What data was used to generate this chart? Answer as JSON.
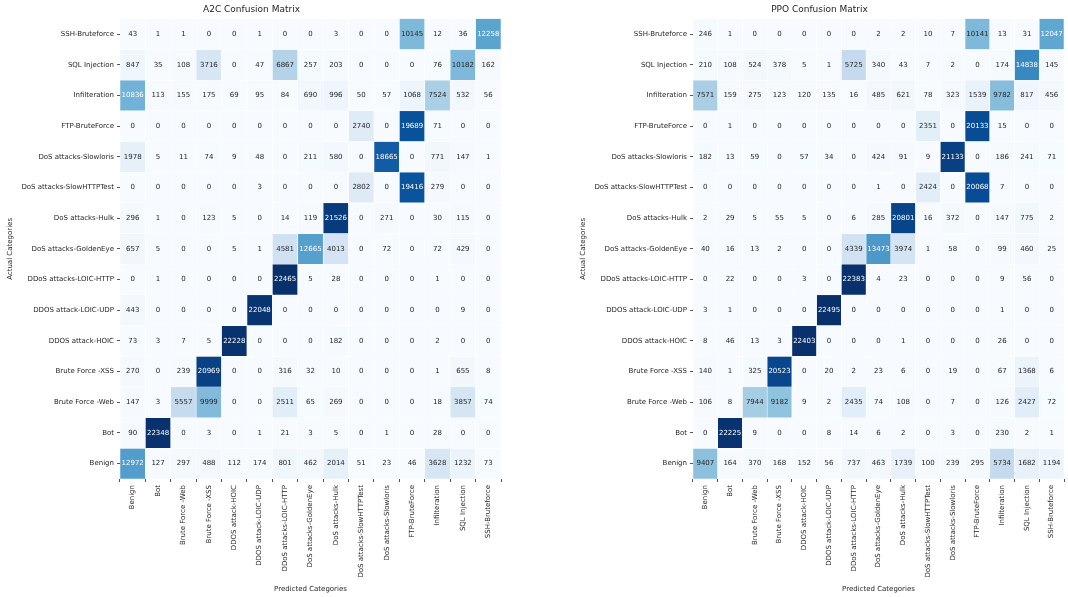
{
  "chart_data": [
    {
      "type": "heatmap",
      "title": "A2C Confusion Matrix",
      "xlabel": "Predicted Categories",
      "ylabel": "Actual Categories",
      "data_labels": true,
      "categories": [
        "Benign",
        "Bot",
        "Brute Force -Web",
        "Brute Force -XSS",
        "DDOS attack-HOIC",
        "DDOS attack-LOIC-UDP",
        "DDoS attacks-LOIC-HTTP",
        "DoS attacks-GoldenEye",
        "DoS attacks-Hulk",
        "DoS attacks-SlowHTTPTest",
        "DoS attacks-Slowloris",
        "FTP-BruteForce",
        "Infilteration",
        "SQL Injection",
        "SSH-Bruteforce"
      ],
      "y_categories": [
        "SSH-Bruteforce",
        "SQL Injection",
        "Infilteration",
        "FTP-BruteForce",
        "DoS attacks-Slowloris",
        "DoS attacks-SlowHTTPTest",
        "DoS attacks-Hulk",
        "DoS attacks-GoldenEye",
        "DDoS attacks-LOIC-HTTP",
        "DDOS attack-LOIC-UDP",
        "DDOS attack-HOIC",
        "Brute Force -XSS",
        "Brute Force -Web",
        "Bot",
        "Benign"
      ],
      "cells": [
        [
          43,
          1,
          1,
          0,
          0,
          1,
          0,
          0,
          3,
          0,
          0,
          10145,
          12,
          36,
          12258
        ],
        [
          847,
          35,
          108,
          3716,
          0,
          47,
          6867,
          257,
          203,
          0,
          0,
          0,
          76,
          10182,
          162
        ],
        [
          10836,
          113,
          155,
          175,
          69,
          95,
          84,
          690,
          996,
          50,
          57,
          1068,
          7524,
          532,
          56
        ],
        [
          0,
          0,
          0,
          0,
          0,
          0,
          0,
          0,
          0,
          2740,
          0,
          19689,
          71,
          0,
          0
        ],
        [
          1978,
          5,
          11,
          74,
          9,
          48,
          0,
          211,
          580,
          0,
          18665,
          0,
          771,
          147,
          1
        ],
        [
          0,
          0,
          0,
          0,
          0,
          3,
          0,
          0,
          0,
          2802,
          0,
          19416,
          279,
          0,
          0
        ],
        [
          296,
          1,
          0,
          123,
          5,
          0,
          14,
          119,
          21526,
          0,
          271,
          0,
          30,
          115,
          0
        ],
        [
          657,
          5,
          0,
          0,
          5,
          1,
          4581,
          12665,
          4013,
          0,
          72,
          0,
          72,
          429,
          0
        ],
        [
          0,
          1,
          0,
          0,
          0,
          0,
          22465,
          5,
          28,
          0,
          0,
          0,
          1,
          0,
          0
        ],
        [
          443,
          0,
          0,
          0,
          0,
          22048,
          0,
          0,
          0,
          0,
          0,
          0,
          0,
          9,
          0
        ],
        [
          73,
          3,
          7,
          5,
          22228,
          0,
          0,
          0,
          182,
          0,
          0,
          0,
          2,
          0,
          0
        ],
        [
          270,
          0,
          239,
          20969,
          0,
          0,
          316,
          32,
          10,
          0,
          0,
          0,
          1,
          655,
          8
        ],
        [
          147,
          3,
          5557,
          9999,
          0,
          0,
          2511,
          65,
          269,
          0,
          0,
          0,
          18,
          3857,
          74
        ],
        [
          90,
          22348,
          0,
          3,
          0,
          1,
          21,
          3,
          5,
          0,
          1,
          0,
          28,
          0,
          0
        ],
        [
          12972,
          127,
          297,
          488,
          112,
          174,
          801,
          462,
          2014,
          51,
          23,
          46,
          3628,
          1232,
          73
        ]
      ]
    },
    {
      "type": "heatmap",
      "title": "PPO Confusion Matrix",
      "xlabel": "Predicted Categories",
      "ylabel": "Actual Categories",
      "data_labels": true,
      "categories": [
        "Benign",
        "Bot",
        "Brute Force -Web",
        "Brute Force -XSS",
        "DDOS attack-HOIC",
        "DDOS attack-LOIC-UDP",
        "DDoS attacks-LOIC-HTTP",
        "DoS attacks-GoldenEye",
        "DoS attacks-Hulk",
        "DoS attacks-SlowHTTPTest",
        "DoS attacks-Slowloris",
        "FTP-BruteForce",
        "Infilteration",
        "SQL Injection",
        "SSH-Bruteforce"
      ],
      "y_categories": [
        "SSH-Bruteforce",
        "SQL Injection",
        "Infilteration",
        "FTP-BruteForce",
        "DoS attacks-Slowloris",
        "DoS attacks-SlowHTTPTest",
        "DoS attacks-Hulk",
        "DoS attacks-GoldenEye",
        "DDoS attacks-LOIC-HTTP",
        "DDOS attack-LOIC-UDP",
        "DDOS attack-HOIC",
        "Brute Force -XSS",
        "Brute Force -Web",
        "Bot",
        "Benign"
      ],
      "cells": [
        [
          246,
          1,
          0,
          0,
          0,
          0,
          0,
          2,
          2,
          10,
          7,
          10141,
          13,
          31,
          12047
        ],
        [
          210,
          108,
          524,
          378,
          5,
          1,
          5725,
          340,
          43,
          7,
          2,
          0,
          174,
          14838,
          145
        ],
        [
          7571,
          159,
          275,
          123,
          120,
          135,
          16,
          485,
          621,
          78,
          323,
          1539,
          9782,
          817,
          456
        ],
        [
          0,
          1,
          0,
          0,
          0,
          0,
          0,
          0,
          0,
          2351,
          0,
          20133,
          15,
          0,
          0
        ],
        [
          182,
          13,
          59,
          0,
          57,
          34,
          0,
          424,
          91,
          9,
          21133,
          0,
          186,
          241,
          71
        ],
        [
          0,
          0,
          0,
          0,
          0,
          0,
          0,
          1,
          0,
          2424,
          0,
          20068,
          7,
          0,
          0
        ],
        [
          2,
          29,
          5,
          55,
          5,
          0,
          6,
          285,
          20801,
          16,
          372,
          0,
          147,
          775,
          2
        ],
        [
          40,
          16,
          13,
          2,
          0,
          0,
          4339,
          13473,
          3974,
          1,
          58,
          0,
          99,
          460,
          25
        ],
        [
          0,
          22,
          0,
          0,
          3,
          0,
          22383,
          4,
          23,
          0,
          0,
          0,
          9,
          56,
          0
        ],
        [
          3,
          1,
          0,
          0,
          0,
          22495,
          0,
          0,
          0,
          0,
          0,
          0,
          1,
          0,
          0
        ],
        [
          8,
          46,
          13,
          3,
          22403,
          0,
          0,
          0,
          1,
          0,
          0,
          0,
          26,
          0,
          0
        ],
        [
          140,
          1,
          325,
          20523,
          0,
          20,
          2,
          23,
          6,
          0,
          19,
          0,
          67,
          1368,
          6
        ],
        [
          106,
          8,
          7944,
          9182,
          9,
          2,
          2435,
          74,
          108,
          0,
          7,
          0,
          126,
          2427,
          72
        ],
        [
          0,
          22225,
          9,
          0,
          0,
          8,
          14,
          6,
          2,
          0,
          3,
          0,
          230,
          2,
          1
        ],
        [
          9407,
          164,
          370,
          168,
          152,
          56,
          737,
          463,
          1739,
          100,
          239,
          295,
          5734,
          1682,
          1194
        ]
      ]
    }
  ]
}
